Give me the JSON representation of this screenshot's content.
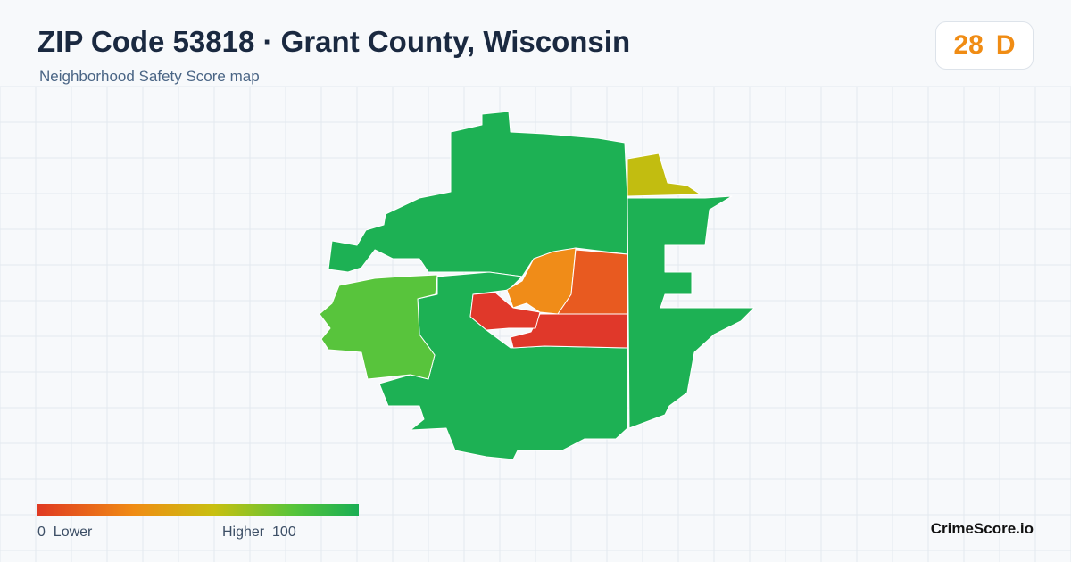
{
  "header": {
    "title": "ZIP Code 53818 · Grant County, Wisconsin",
    "subtitle": "Neighborhood Safety Score map"
  },
  "score": {
    "value": "28",
    "grade": "D"
  },
  "legend": {
    "min": "0",
    "min_label": "Lower",
    "max_label": "Higher",
    "max": "100"
  },
  "brand": "CrimeScore.io"
}
